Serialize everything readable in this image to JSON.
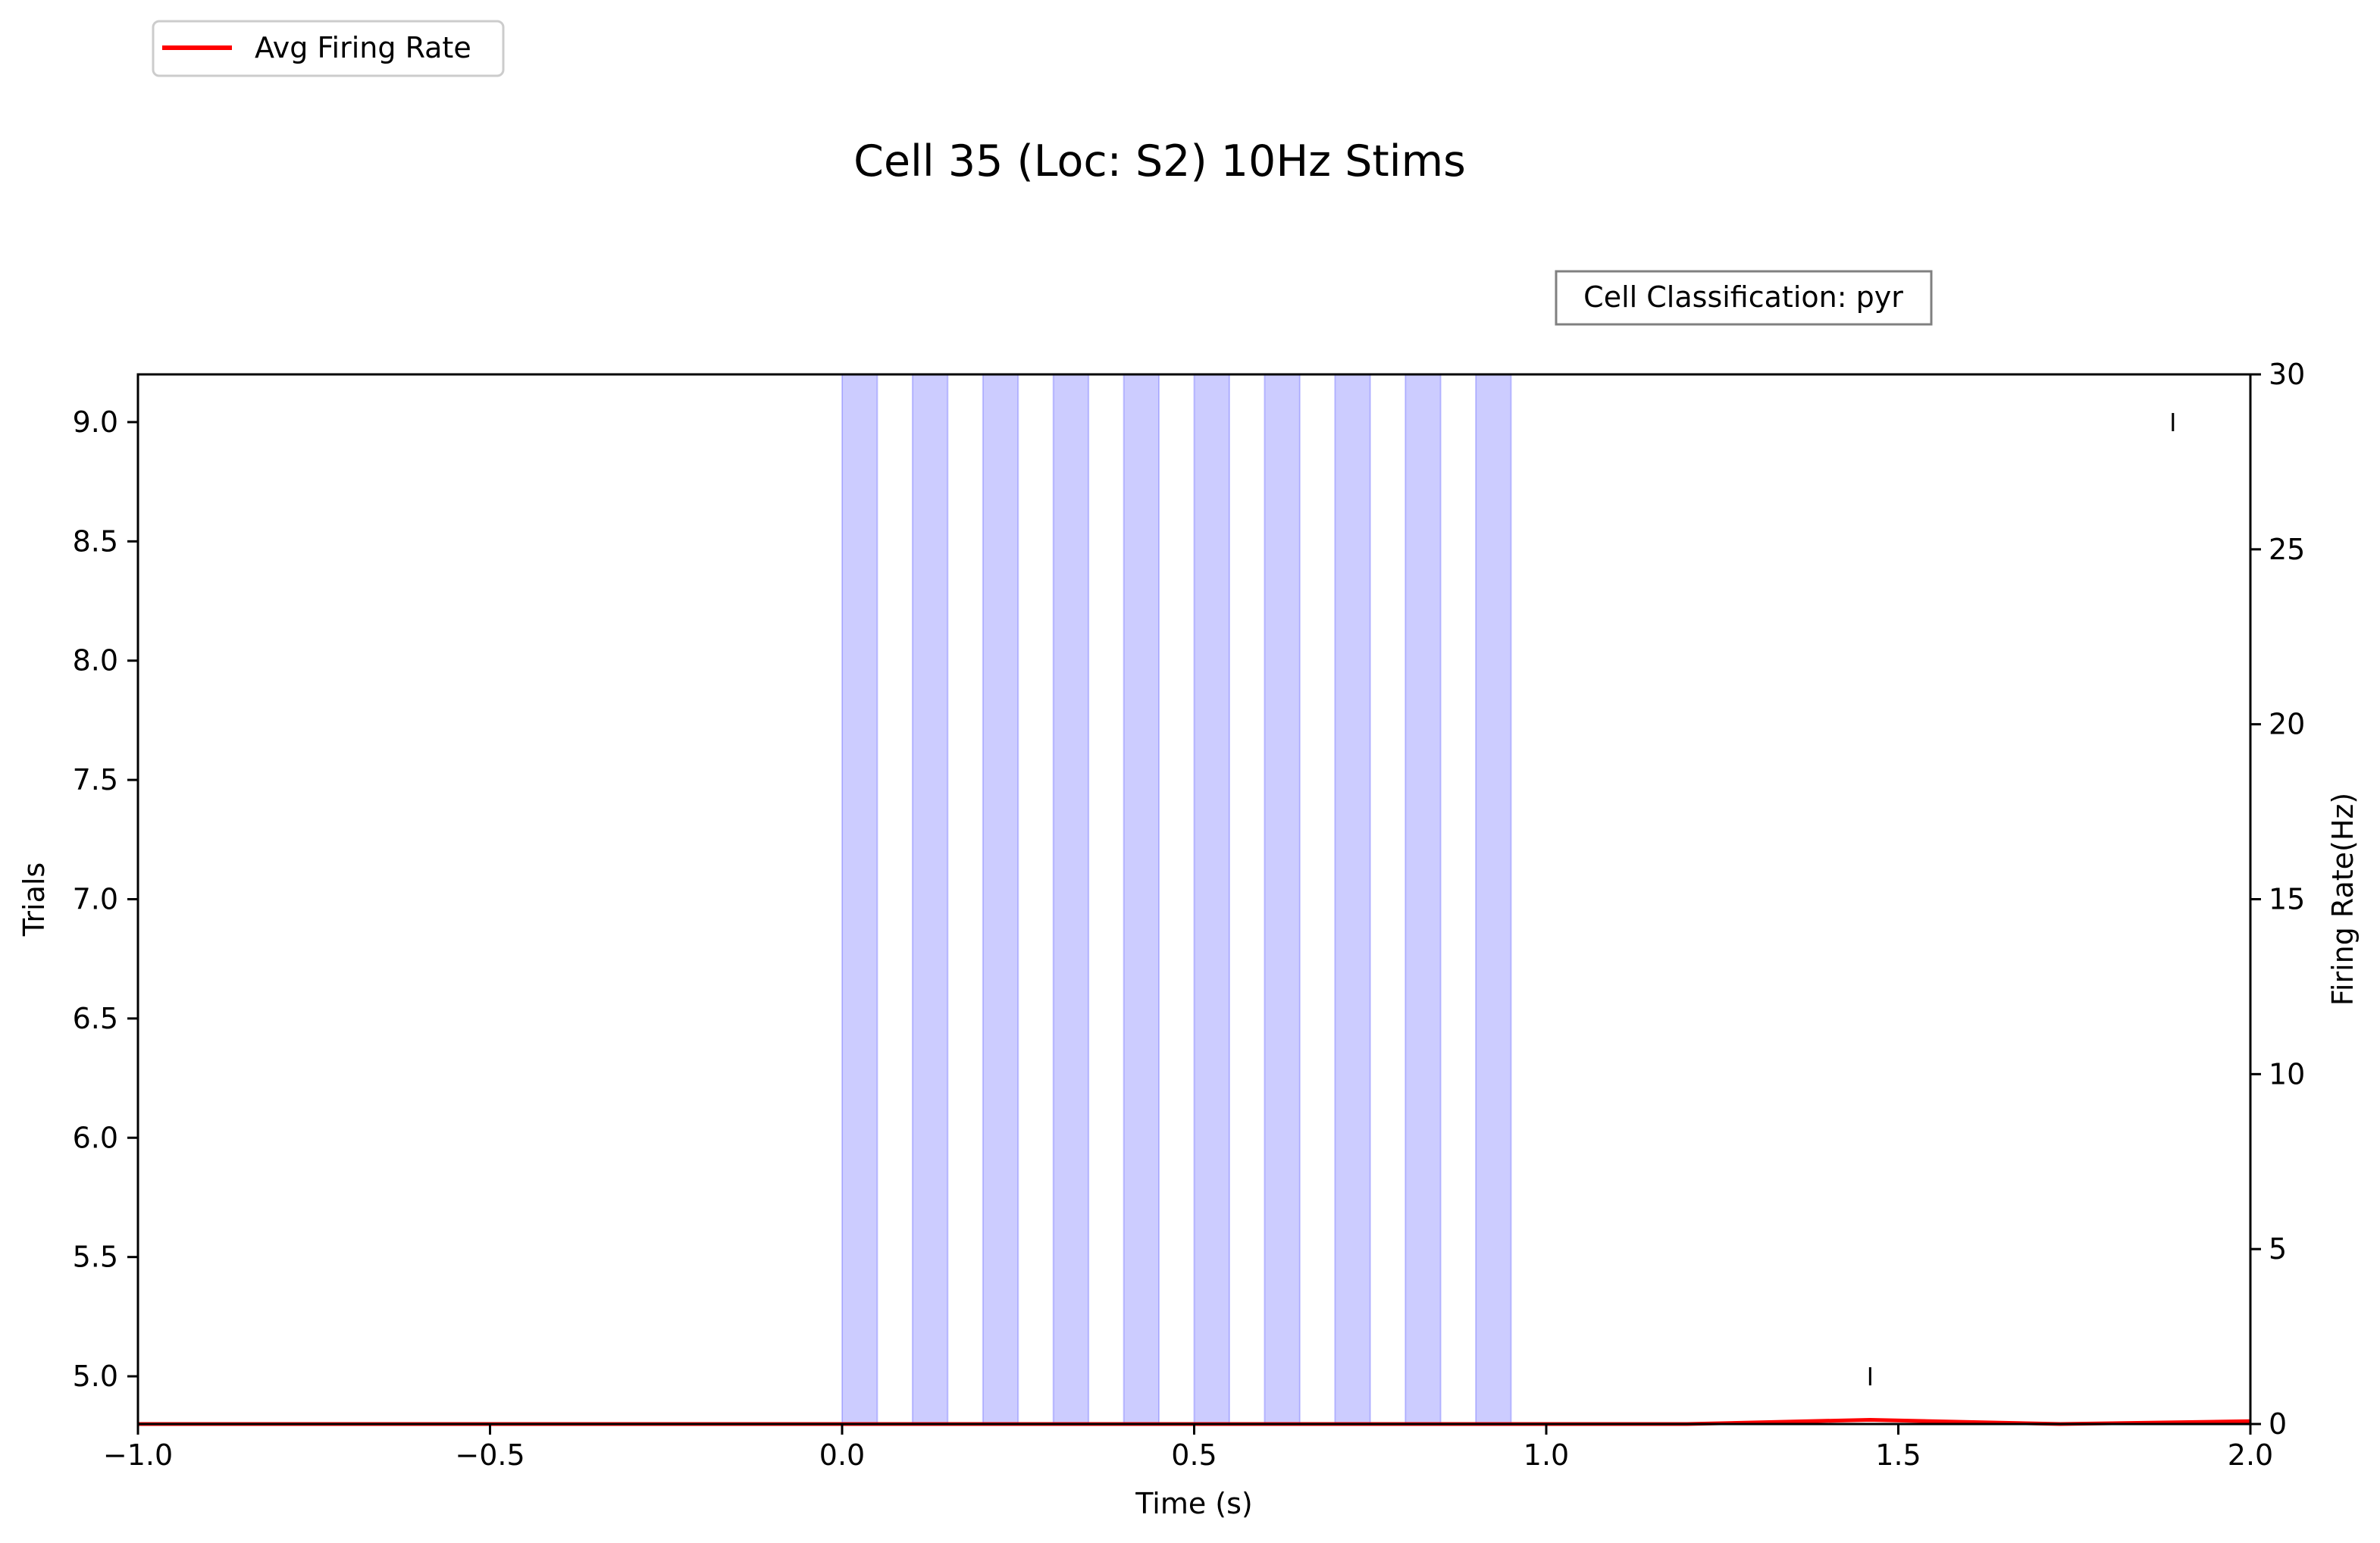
{
  "chart_data": {
    "type": "line",
    "title": "Cell 35 (Loc: S2) 10Hz Stims",
    "xlabel": "Time (s)",
    "ylabel_left": "Trials",
    "ylabel_right": "Firing Rate(Hz)",
    "xlim": [
      -1.0,
      2.0
    ],
    "ylim_left": [
      4.8,
      9.2
    ],
    "ylim_right": [
      0,
      30
    ],
    "x_ticks": [
      -1.0,
      -0.5,
      0.0,
      0.5,
      1.0,
      1.5,
      2.0
    ],
    "x_tick_labels": [
      "−1.0",
      "−0.5",
      "0.0",
      "0.5",
      "1.0",
      "1.5",
      "2.0"
    ],
    "y_left_ticks": [
      5.0,
      5.5,
      6.0,
      6.5,
      7.0,
      7.5,
      8.0,
      8.5,
      9.0
    ],
    "y_left_tick_labels": [
      "5.0",
      "5.5",
      "6.0",
      "6.5",
      "7.0",
      "7.5",
      "8.0",
      "8.5",
      "9.0"
    ],
    "y_right_ticks": [
      0,
      5,
      10,
      15,
      20,
      25,
      30
    ],
    "y_right_tick_labels": [
      "0",
      "5",
      "10",
      "15",
      "20",
      "25",
      "30"
    ],
    "grid": false,
    "legend": {
      "placement": "top-left, outside plot",
      "entries": [
        {
          "label": "Avg Firing Rate",
          "color": "#ff0000"
        }
      ]
    },
    "annotation": "Cell Classification: pyr",
    "stim_windows": [
      [
        0.0,
        0.05
      ],
      [
        0.1,
        0.15
      ],
      [
        0.2,
        0.25
      ],
      [
        0.3,
        0.35
      ],
      [
        0.4,
        0.45
      ],
      [
        0.5,
        0.55
      ],
      [
        0.6,
        0.65
      ],
      [
        0.7,
        0.75
      ],
      [
        0.8,
        0.85
      ],
      [
        0.9,
        0.95
      ]
    ],
    "stim_color": "#0000ff",
    "spikes": [
      {
        "time": 1.46,
        "trial": 5
      },
      {
        "time": 1.89,
        "trial": 9
      }
    ],
    "series": [
      {
        "name": "Avg Firing Rate",
        "color": "#ff0000",
        "x": [
          -1.0,
          -0.5,
          0.0,
          0.5,
          1.0,
          1.2,
          1.46,
          1.73,
          2.0
        ],
        "y": [
          0,
          0,
          0,
          0,
          0,
          0,
          0.12,
          0,
          0.08
        ]
      }
    ]
  }
}
